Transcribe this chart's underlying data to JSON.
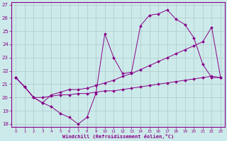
{
  "background_color": "#cceaea",
  "grid_color": "#b0c8c8",
  "line_color": "#880088",
  "xlabel": "Windchill (Refroidissement éolien,°C)",
  "xlim": [
    -0.5,
    23.5
  ],
  "ylim": [
    17.8,
    27.2
  ],
  "yticks": [
    18,
    19,
    20,
    21,
    22,
    23,
    24,
    25,
    26,
    27
  ],
  "xticks": [
    0,
    1,
    2,
    3,
    4,
    5,
    6,
    7,
    8,
    9,
    10,
    11,
    12,
    13,
    14,
    15,
    16,
    17,
    18,
    19,
    20,
    21,
    22,
    23
  ],
  "curve1_x": [
    0,
    1,
    2,
    3,
    4,
    5,
    6,
    7,
    8,
    9,
    10,
    11,
    12,
    13,
    14,
    15,
    16,
    17,
    18,
    19,
    20,
    21,
    22,
    23
  ],
  "curve1_y": [
    21.5,
    20.8,
    20.0,
    19.6,
    19.3,
    18.8,
    18.5,
    18.0,
    18.5,
    20.3,
    24.8,
    23.0,
    21.8,
    21.9,
    25.4,
    26.2,
    26.3,
    26.6,
    25.9,
    25.5,
    24.5,
    22.5,
    21.5,
    21.5
  ],
  "curve2_x": [
    0,
    1,
    2,
    3,
    4,
    5,
    6,
    7,
    8,
    9,
    10,
    11,
    12,
    13,
    14,
    15,
    16,
    17,
    18,
    19,
    20,
    21,
    22,
    23
  ],
  "curve2_y": [
    21.5,
    20.8,
    20.0,
    19.6,
    20.2,
    20.4,
    20.6,
    20.6,
    20.7,
    20.9,
    21.1,
    21.3,
    21.6,
    21.8,
    22.1,
    22.4,
    22.7,
    23.0,
    23.3,
    23.6,
    23.9,
    24.2,
    25.3,
    21.5
  ],
  "curve3_x": [
    0,
    1,
    2,
    3,
    4,
    5,
    6,
    7,
    8,
    9,
    10,
    11,
    12,
    13,
    14,
    15,
    16,
    17,
    18,
    19,
    20,
    21,
    22,
    23
  ],
  "curve3_y": [
    21.5,
    20.8,
    20.0,
    20.0,
    20.1,
    20.2,
    20.2,
    20.3,
    20.3,
    20.4,
    20.5,
    20.5,
    20.6,
    20.7,
    20.8,
    20.9,
    21.0,
    21.1,
    21.2,
    21.3,
    21.4,
    21.5,
    21.6,
    21.5
  ]
}
